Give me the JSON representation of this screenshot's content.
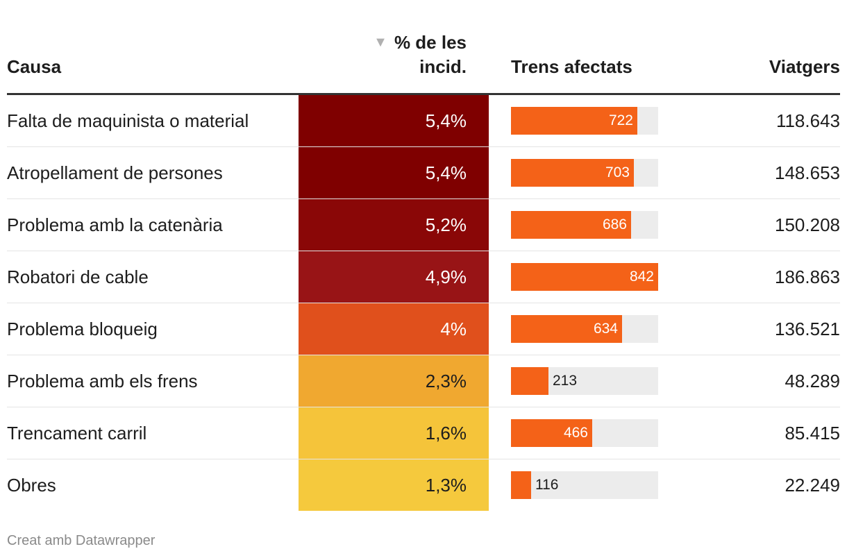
{
  "chart_data": {
    "type": "table",
    "columns": {
      "causa": "Causa",
      "pct": "% de les incid.",
      "trens": "Trens afectats",
      "viatgers": "Viatgers"
    },
    "sort_indicator": "▼",
    "bar_max": 842,
    "rows": [
      {
        "causa": "Falta de maquinista o material",
        "pct": "5,4%",
        "pct_value": 5.4,
        "color": "#7f0000",
        "text_color": "#ffffff",
        "trens": 722,
        "trens_label": "722",
        "viatgers": "118.643"
      },
      {
        "causa": "Atropellament de persones",
        "pct": "5,4%",
        "pct_value": 5.4,
        "color": "#7f0000",
        "text_color": "#ffffff",
        "trens": 703,
        "trens_label": "703",
        "viatgers": "148.653"
      },
      {
        "causa": "Problema amb la catenària",
        "pct": "5,2%",
        "pct_value": 5.2,
        "color": "#8a0707",
        "text_color": "#ffffff",
        "trens": 686,
        "trens_label": "686",
        "viatgers": "150.208"
      },
      {
        "causa": "Robatori de cable",
        "pct": "4,9%",
        "pct_value": 4.9,
        "color": "#981416",
        "text_color": "#ffffff",
        "trens": 842,
        "trens_label": "842",
        "viatgers": "186.863"
      },
      {
        "causa": "Problema bloqueig",
        "pct": "4%",
        "pct_value": 4.0,
        "color": "#e0501c",
        "text_color": "#ffffff",
        "trens": 634,
        "trens_label": "634",
        "viatgers": "136.521"
      },
      {
        "causa": "Problema amb els frens",
        "pct": "2,3%",
        "pct_value": 2.3,
        "color": "#f0a830",
        "text_color": "#1d1d1d",
        "trens": 213,
        "trens_label": "213",
        "viatgers": "48.289"
      },
      {
        "causa": "Trencament carril",
        "pct": "1,6%",
        "pct_value": 1.6,
        "color": "#f5c43a",
        "text_color": "#1d1d1d",
        "trens": 466,
        "trens_label": "466",
        "viatgers": "85.415"
      },
      {
        "causa": "Obres",
        "pct": "1,3%",
        "pct_value": 1.3,
        "color": "#f5c93d",
        "text_color": "#1d1d1d",
        "trens": 116,
        "trens_label": "116",
        "viatgers": "22.249"
      }
    ]
  },
  "footer": {
    "credit": "Creat amb Datawrapper"
  },
  "colors": {
    "bar": "#f46218",
    "bar_track": "#ececec",
    "header_rule": "#333333"
  }
}
